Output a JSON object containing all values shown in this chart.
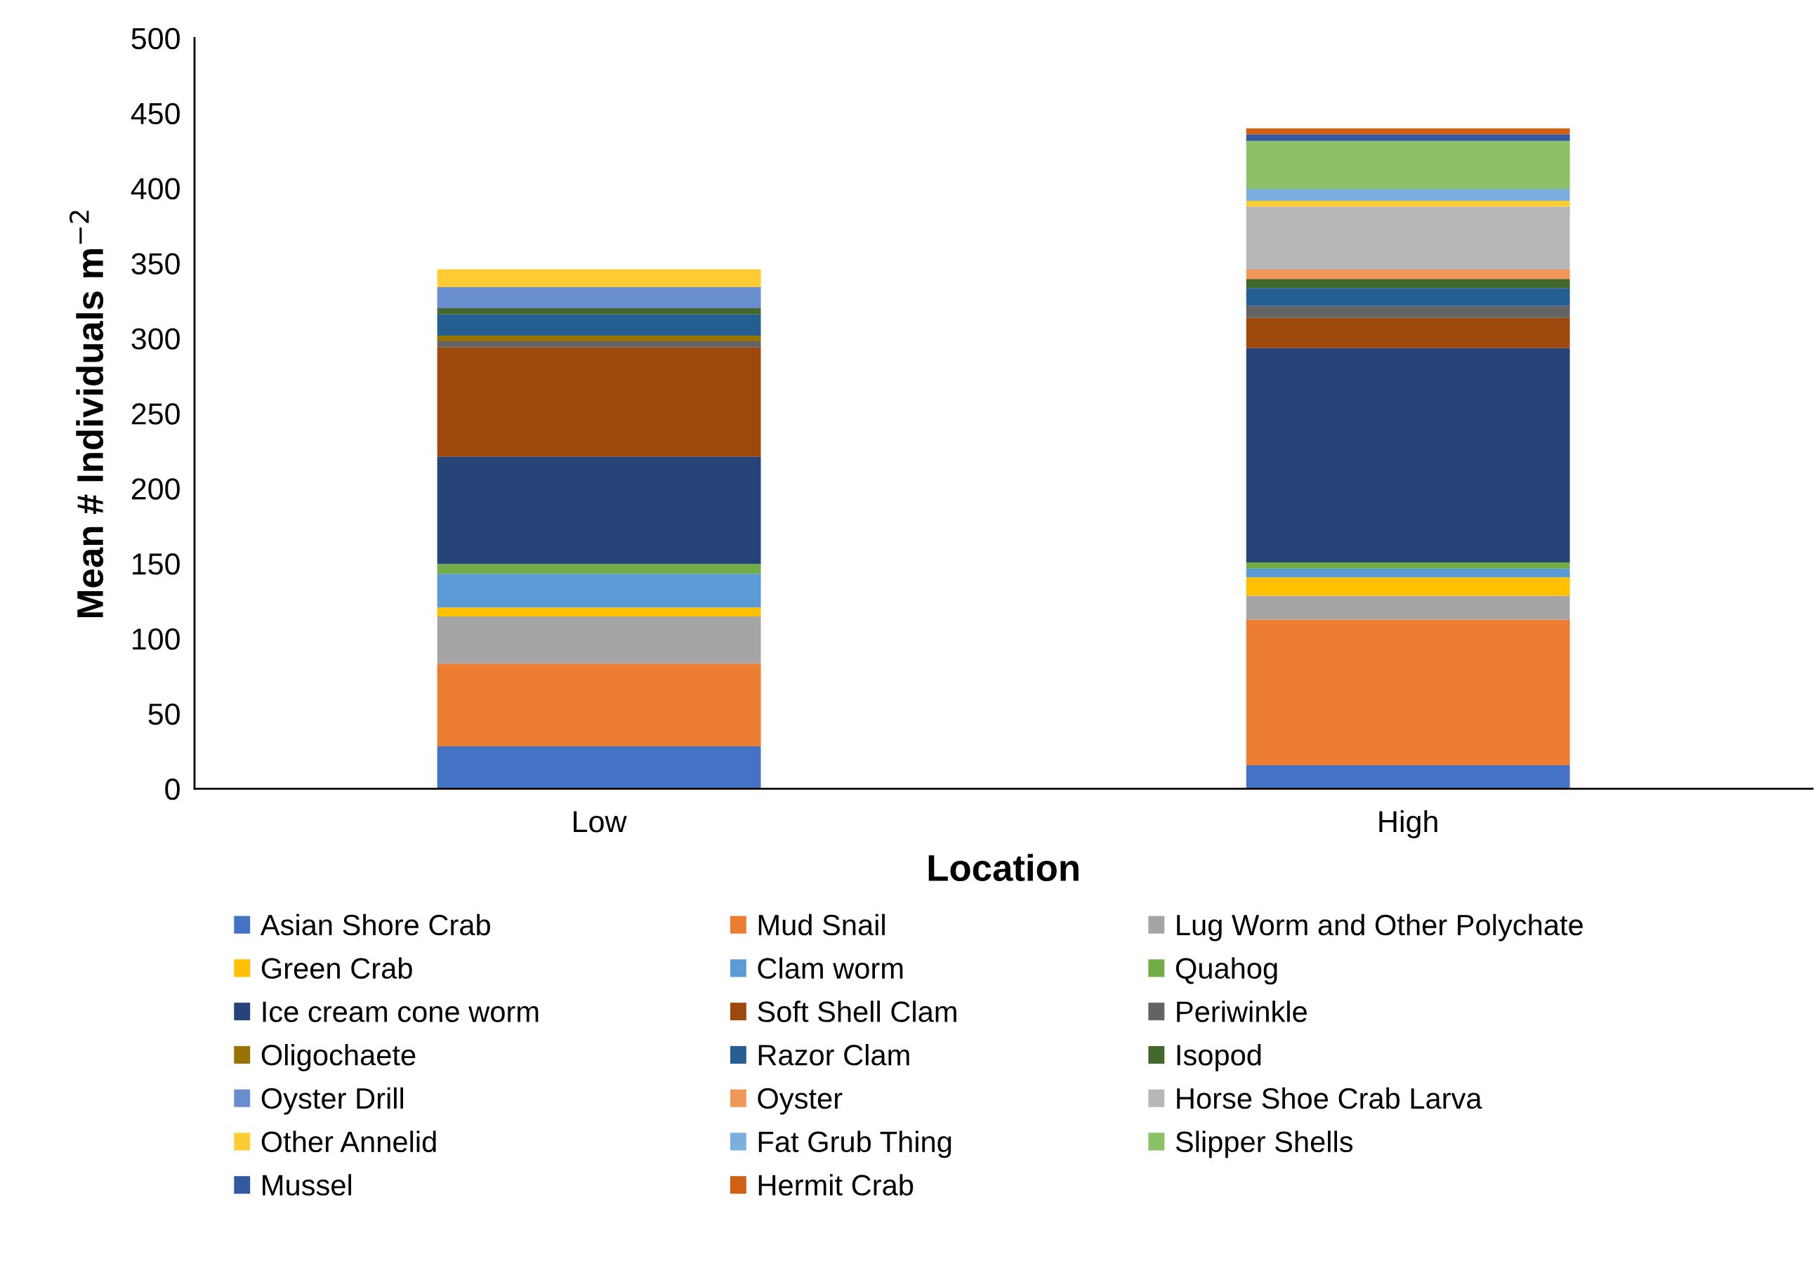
{
  "chart_data": {
    "type": "bar",
    "stacked": true,
    "xlabel": "Location",
    "ylabel": "Mean # Individuals m$^{−2}$",
    "categories": [
      "Low",
      "High"
    ],
    "series": [
      {
        "name": "Asian Shore Crab",
        "color": "#4472c4",
        "values": [
          28.2,
          15.6
        ]
      },
      {
        "name": "Mud Snail",
        "color": "#ed7d31",
        "values": [
          55.1,
          97.0
        ]
      },
      {
        "name": "Lug Worm and Other Polychate",
        "color": "#a5a5a5",
        "values": [
          31.4,
          15.9
        ]
      },
      {
        "name": "Green Crab",
        "color": "#ffc000",
        "values": [
          6.0,
          12.3
        ]
      },
      {
        "name": "Clam worm",
        "color": "#5b9bd5",
        "values": [
          22.4,
          5.8
        ]
      },
      {
        "name": "Quahog",
        "color": "#70ad47",
        "values": [
          6.6,
          4.2
        ]
      },
      {
        "name": "Ice cream cone worm",
        "color": "#264478",
        "values": [
          71.6,
          142.7
        ]
      },
      {
        "name": "Soft Shell Clam",
        "color": "#9e480e",
        "values": [
          72.7,
          20.1
        ]
      },
      {
        "name": "Periwinkle",
        "color": "#636363",
        "values": [
          4.1,
          8.0
        ]
      },
      {
        "name": "Oligochaete",
        "color": "#997300",
        "values": [
          3.7,
          0
        ]
      },
      {
        "name": "Razor Clam",
        "color": "#255e91",
        "values": [
          14.2,
          11.9
        ]
      },
      {
        "name": "Isopod",
        "color": "#43682b",
        "values": [
          4.0,
          6.1
        ]
      },
      {
        "name": "Oyster Drill",
        "color": "#698ed0",
        "values": [
          14.1,
          0
        ]
      },
      {
        "name": "Oyster",
        "color": "#f1975a",
        "values": [
          0,
          6.2
        ]
      },
      {
        "name": "Horse Shoe Crab Larva",
        "color": "#b7b7b7",
        "values": [
          0,
          41.9
        ]
      },
      {
        "name": "Other Annelid",
        "color": "#ffcd33",
        "values": [
          11.9,
          3.9
        ]
      },
      {
        "name": "Fat Grub Thing",
        "color": "#7cafdd",
        "values": [
          0,
          7.9
        ]
      },
      {
        "name": "Slipper Shells",
        "color": "#8cc168",
        "values": [
          0,
          32.0
        ]
      },
      {
        "name": "Mussel",
        "color": "#335aa1",
        "values": [
          0,
          4.4
        ]
      },
      {
        "name": "Hermit Crab",
        "color": "#d26012",
        "values": [
          0,
          4.0
        ]
      }
    ],
    "ylim": [
      0,
      500
    ],
    "yticks": [
      0,
      50,
      100,
      150,
      200,
      250,
      300,
      350,
      400,
      450,
      500
    ],
    "grid": false,
    "legend": "bottom"
  }
}
